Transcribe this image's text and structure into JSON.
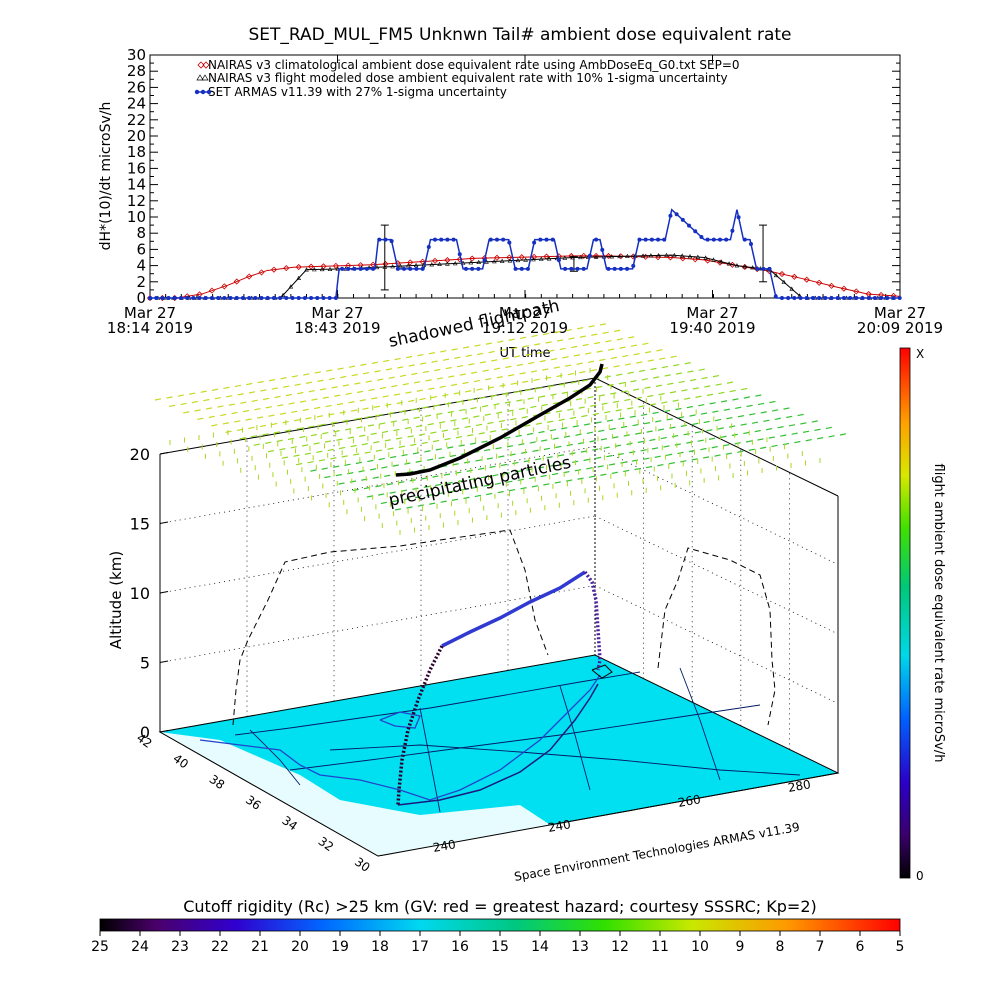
{
  "chart_data": [
    {
      "type": "line",
      "title": "SET_RAD_MUL_FM5 Unknwn Tail#  ambient dose equivalent rate",
      "ylabel": "dH*(10)/dt microSv/h",
      "xlabel": "UT time",
      "ylim": [
        0,
        30
      ],
      "yticks": [
        "0",
        "2",
        "4",
        "6",
        "8",
        "10",
        "12",
        "14",
        "16",
        "18",
        "20",
        "22",
        "24",
        "26",
        "28",
        "30"
      ],
      "xticks": [
        {
          "line1": "Mar 27",
          "line2": "18:14 2019"
        },
        {
          "line1": "Mar 27",
          "line2": "18:43 2019"
        },
        {
          "line1": "Mar 27",
          "line2": "19:12 2019"
        },
        {
          "line1": "Mar 27",
          "line2": "19:40 2019"
        },
        {
          "line1": "Mar 27",
          "line2": "20:09 2019"
        }
      ],
      "xrange_minutes": [
        0,
        115
      ],
      "legend_position": "top-left",
      "series": [
        {
          "name": "NAIRAS v3 climatological ambient dose equivalent rate using AmbDoseEq_G0.txt SEP=0",
          "marker": "diamond-open",
          "color": "#cc0000",
          "x": [
            0,
            4,
            8,
            12,
            15,
            18,
            22,
            26,
            30,
            34,
            38,
            42,
            46,
            50,
            55,
            60,
            65,
            70,
            75,
            80,
            85,
            90,
            95,
            100,
            105,
            110,
            115
          ],
          "values": [
            0,
            0,
            0.5,
            1.6,
            2.6,
            3.4,
            3.8,
            3.9,
            4.0,
            4.1,
            4.3,
            4.5,
            4.7,
            4.9,
            5.0,
            5.1,
            5.2,
            5.2,
            5.1,
            5.0,
            4.7,
            4.0,
            3.3,
            2.4,
            1.4,
            0.5,
            0.2
          ]
        },
        {
          "name": "NAIRAS v3 flight modeled dose ambient equivalent rate with 10% 1-sigma uncertainty",
          "marker": "triangle-open",
          "color": "#000000",
          "x": [
            0,
            20,
            24,
            30,
            35,
            40,
            45,
            50,
            55,
            60,
            65,
            70,
            75,
            80,
            85,
            90,
            95,
            100,
            115
          ],
          "values": [
            0,
            0,
            3.5,
            3.6,
            3.8,
            4.0,
            4.2,
            4.4,
            4.6,
            4.8,
            5.0,
            5.1,
            5.2,
            5.3,
            5.0,
            4.0,
            3.5,
            0,
            0
          ],
          "error_bars": [
            {
              "x": 36,
              "y": 5.0,
              "err": 4.0
            },
            {
              "x": 65,
              "y": 4.2,
              "err": 0.9
            },
            {
              "x": 94,
              "y": 5.5,
              "err": 3.5
            }
          ]
        },
        {
          "name": "SET ARMAS v11.39 with 27% 1-sigma uncertainty",
          "marker": "filled-circle",
          "color": "#1530c0",
          "x": [
            0,
            10,
            20,
            28.5,
            29,
            34.5,
            35,
            36,
            37,
            38,
            39,
            42,
            43,
            47,
            48,
            51,
            52,
            55,
            56,
            58,
            59,
            62,
            63,
            67,
            68,
            69,
            70,
            73,
            74,
            75,
            76,
            79,
            80,
            85,
            86,
            89,
            90,
            91,
            92,
            93,
            95,
            96,
            105,
            106,
            107,
            110,
            111,
            115
          ],
          "values": [
            0,
            0,
            0,
            0,
            3.6,
            3.6,
            7.2,
            7.2,
            7.2,
            3.6,
            3.6,
            3.6,
            7.2,
            7.2,
            3.6,
            3.6,
            7.2,
            7.2,
            3.6,
            3.6,
            7.2,
            7.2,
            3.6,
            3.6,
            7.2,
            7.2,
            3.6,
            3.6,
            3.6,
            7.2,
            7.2,
            7.2,
            10.9,
            7.2,
            7.2,
            7.2,
            10.9,
            7.2,
            7.2,
            3.6,
            3.6,
            0,
            0,
            0,
            0,
            0,
            0,
            0
          ]
        }
      ]
    },
    {
      "type": "scatter",
      "subtype": "3d-trajectory",
      "zlabel": "Altitude (km)",
      "zticks": [
        "0",
        "5",
        "10",
        "15",
        "20"
      ],
      "lat_ticks": [
        "42",
        "40",
        "38",
        "36",
        "34",
        "32",
        "30"
      ],
      "lon_ticks": [
        "240",
        "240",
        "260",
        "280"
      ],
      "annotations": [
        "shadowed flightpath",
        "precipitating particles"
      ],
      "credit": "Space Environment Technologies ARMAS v11.39",
      "colorbar": {
        "label": "flight ambient dose equivalent rate microSv/h",
        "top_label": "X",
        "bottom_label": "0"
      }
    },
    {
      "type": "heatmap",
      "subtype": "colorbar",
      "title": "Cutoff rigidity (Rc) >25 km (GV: red = greatest hazard; courtesy SSSRC; Kp=2)",
      "ticks": [
        "25",
        "24",
        "23",
        "22",
        "21",
        "20",
        "19",
        "18",
        "17",
        "16",
        "15",
        "14",
        "13",
        "12",
        "11",
        "10",
        "9",
        "8",
        "7",
        "6",
        "5"
      ]
    }
  ]
}
